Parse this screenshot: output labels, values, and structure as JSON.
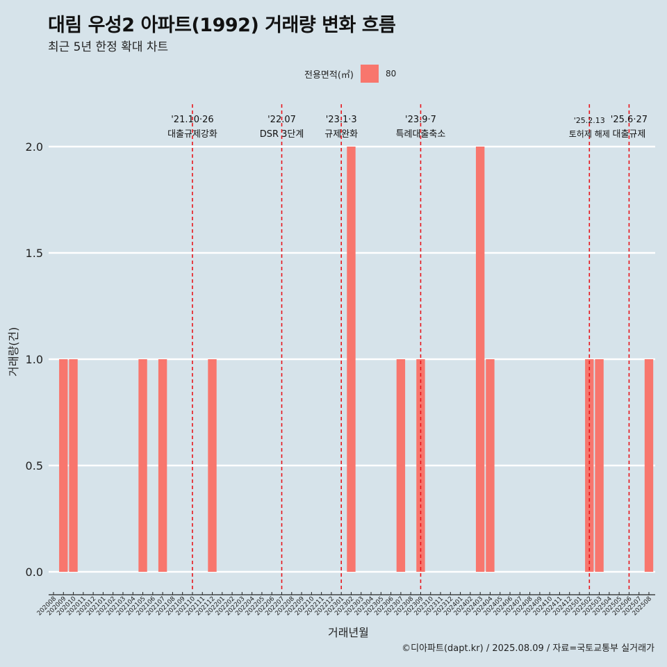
{
  "header": {
    "title": "대림 우성2 아파트(1992) 거래량 변화 흐름",
    "subtitle": "최근 5년 한정 확대 차트"
  },
  "legend": {
    "title": "전용면적(㎡)",
    "items": [
      {
        "label": "80",
        "color": "#f8766d"
      }
    ]
  },
  "caption": "©디아파트(dapt.kr) / 2025.08.09 / 자료=국토교통부 실거래가",
  "chart_data": {
    "type": "bar",
    "title": "대림 우성2 아파트(1992) 거래량 변화 흐름",
    "subtitle": "최근 5년 한정 확대 차트",
    "xlabel": "거래년월",
    "ylabel": "거래량(건)",
    "ylim": [
      0,
      2
    ],
    "yticks": [
      "0.0",
      "0.5",
      "1.0",
      "1.5",
      "2.0"
    ],
    "grid": "horizontal",
    "legend_position": "top",
    "bar_color": "#f8766d",
    "categories": [
      "202008",
      "202009",
      "202010",
      "202011",
      "202012",
      "202101",
      "202102",
      "202103",
      "202104",
      "202105",
      "202106",
      "202107",
      "202108",
      "202109",
      "202110",
      "202111",
      "202112",
      "202201",
      "202202",
      "202203",
      "202204",
      "202205",
      "202206",
      "202207",
      "202208",
      "202209",
      "202210",
      "202211",
      "202212",
      "202301",
      "202302",
      "202303",
      "202304",
      "202305",
      "202306",
      "202307",
      "202308",
      "202309",
      "202310",
      "202311",
      "202312",
      "202401",
      "202402",
      "202403",
      "202404",
      "202405",
      "202406",
      "202407",
      "202408",
      "202409",
      "202410",
      "202411",
      "202412",
      "202501",
      "202502",
      "202503",
      "202504",
      "202505",
      "202506",
      "202507",
      "202508"
    ],
    "series": [
      {
        "name": "80",
        "values": [
          {
            "x": "202009",
            "y": 1
          },
          {
            "x": "202010",
            "y": 1
          },
          {
            "x": "202105",
            "y": 1
          },
          {
            "x": "202107",
            "y": 1
          },
          {
            "x": "202112",
            "y": 1
          },
          {
            "x": "202302",
            "y": 2
          },
          {
            "x": "202307",
            "y": 1
          },
          {
            "x": "202309",
            "y": 1
          },
          {
            "x": "202403",
            "y": 2
          },
          {
            "x": "202404",
            "y": 1
          },
          {
            "x": "202502",
            "y": 1
          },
          {
            "x": "202503",
            "y": 1
          },
          {
            "x": "202508",
            "y": 1
          }
        ]
      }
    ],
    "annotations": [
      {
        "x": "202110",
        "date": "'21.10·26",
        "label": "대출규제강화"
      },
      {
        "x": "202207",
        "date": "'22.07",
        "label": "DSR 3단계"
      },
      {
        "x": "202301",
        "date": "'23.1·3",
        "label": "규제완화"
      },
      {
        "x": "202309",
        "date": "'23.9·7",
        "label": "특례대출축소"
      },
      {
        "x": "202502",
        "date": "'25.2.13",
        "label": "토허제 해제"
      },
      {
        "x": "202506",
        "date": "'25.6·27",
        "label": "대출규제"
      }
    ]
  }
}
